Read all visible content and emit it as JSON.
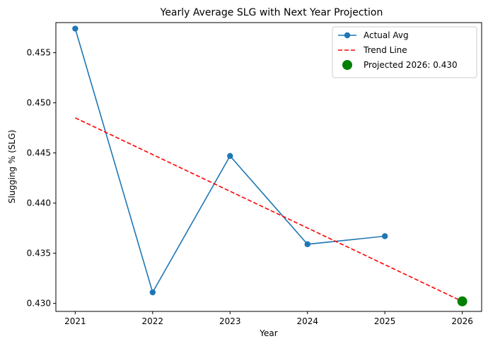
{
  "chart_data": {
    "type": "line",
    "title": "Yearly Average SLG with Next Year Projection",
    "xlabel": "Year",
    "ylabel": "Slugging % (SLG)",
    "x": [
      2021,
      2022,
      2023,
      2024,
      2025,
      2026
    ],
    "xlim": [
      2020.75,
      2026.25
    ],
    "ylim": [
      0.4292,
      0.458
    ],
    "yticks": [
      0.43,
      0.435,
      0.44,
      0.445,
      0.45,
      0.455
    ],
    "ytick_labels": [
      "0.430",
      "0.435",
      "0.440",
      "0.445",
      "0.450",
      "0.455"
    ],
    "xtick_labels": [
      "2021",
      "2022",
      "2023",
      "2024",
      "2025",
      "2026"
    ],
    "grid": false,
    "legend_position": "top-right",
    "series": [
      {
        "name": "Actual Avg",
        "style": "line-marker",
        "color": "#1f77b4",
        "x": [
          2021,
          2022,
          2023,
          2024,
          2025
        ],
        "values": [
          0.4574,
          0.4311,
          0.4447,
          0.4359,
          0.4367
        ]
      },
      {
        "name": "Trend Line",
        "style": "dashed",
        "color": "#ff0000",
        "x": [
          2021,
          2026
        ],
        "values": [
          0.4485,
          0.4302
        ]
      },
      {
        "name": "Projected 2026: 0.430",
        "style": "point",
        "color": "#008000",
        "x": [
          2026
        ],
        "values": [
          0.4302
        ]
      }
    ]
  }
}
